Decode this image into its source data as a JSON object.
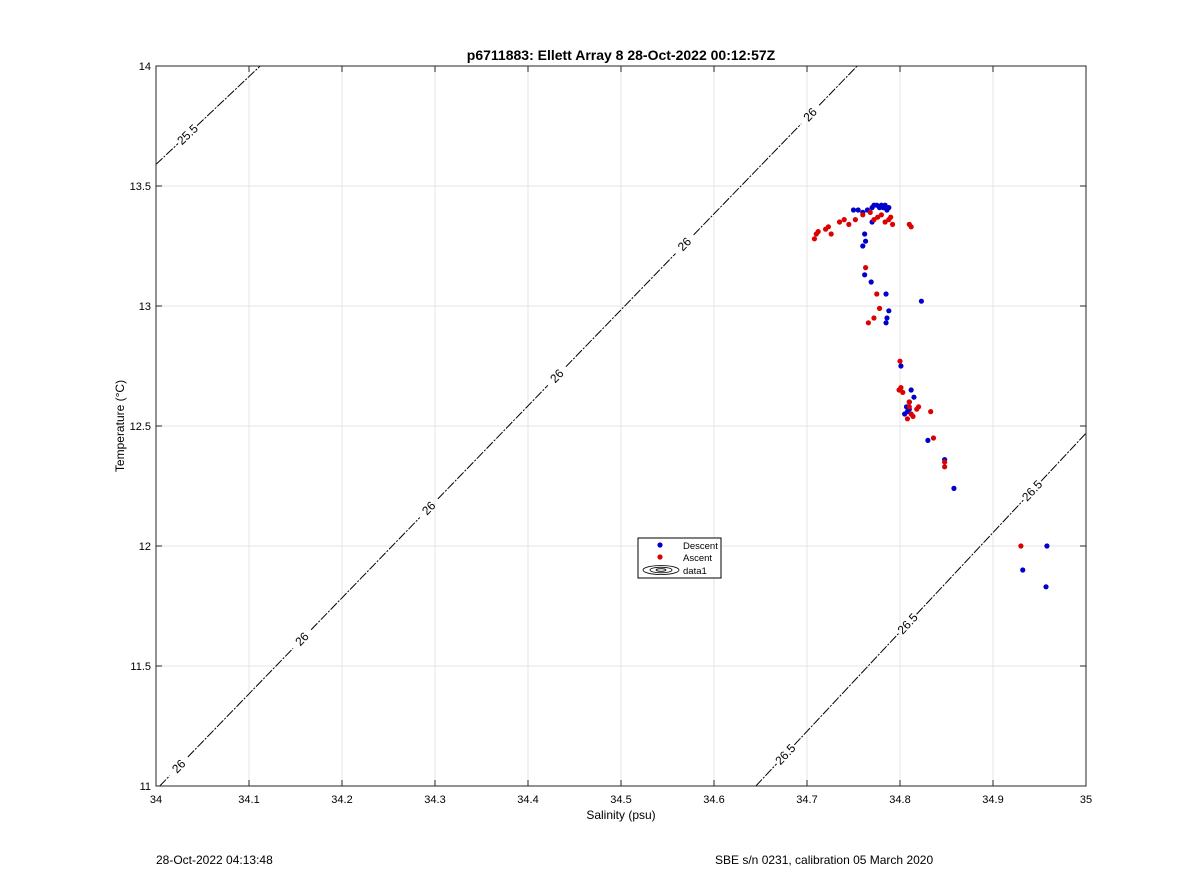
{
  "chart_data": {
    "type": "scatter",
    "title": "p6711883: Ellett Array 8 28-Oct-2022 00:12:57Z",
    "xlabel": "Salinity (psu)",
    "ylabel": "Temperature (°C)",
    "xlim": [
      34,
      35
    ],
    "ylim": [
      11,
      14
    ],
    "xticks": [
      34,
      34.1,
      34.2,
      34.3,
      34.4,
      34.5,
      34.6,
      34.7,
      34.8,
      34.9,
      35
    ],
    "xtick_labels": [
      "34",
      "34.1",
      "34.2",
      "34.3",
      "34.4",
      "34.5",
      "34.6",
      "34.7",
      "34.8",
      "34.9",
      "35"
    ],
    "yticks": [
      11,
      11.5,
      12,
      12.5,
      13,
      13.5,
      14
    ],
    "ytick_labels": [
      "11",
      "11.5",
      "12",
      "12.5",
      "13",
      "13.5",
      "14"
    ],
    "grid": true,
    "legend_placement": "center",
    "legend": [
      "Descent",
      "Ascent",
      "data1"
    ],
    "colors": {
      "descent": "#0000cc",
      "ascent": "#dd0000",
      "contour": "#000000",
      "grid": "#e6e6e6"
    },
    "series": [
      {
        "name": "Descent",
        "x": [
          34.75,
          34.755,
          34.76,
          34.765,
          34.77,
          34.772,
          34.775,
          34.778,
          34.78,
          34.782,
          34.784,
          34.786,
          34.788,
          34.77,
          34.762,
          34.763,
          34.76,
          34.762,
          34.769,
          34.785,
          34.788,
          34.786,
          34.785,
          34.823,
          34.801,
          34.812,
          34.815,
          34.81,
          34.807,
          34.805,
          34.808,
          34.81,
          34.83,
          34.848,
          34.858,
          34.958,
          34.932,
          34.957
        ],
        "y": [
          13.4,
          13.4,
          13.39,
          13.4,
          13.41,
          13.42,
          13.42,
          13.41,
          13.42,
          13.41,
          13.42,
          13.4,
          13.41,
          13.35,
          13.3,
          13.27,
          13.25,
          13.13,
          13.1,
          13.05,
          12.98,
          12.95,
          12.93,
          13.02,
          12.75,
          12.65,
          12.62,
          12.6,
          12.58,
          12.55,
          12.56,
          12.57,
          12.44,
          12.36,
          12.24,
          12.0,
          11.9,
          11.83
        ]
      },
      {
        "name": "Ascent",
        "x": [
          34.708,
          34.71,
          34.712,
          34.72,
          34.723,
          34.726,
          34.735,
          34.74,
          34.745,
          34.752,
          34.76,
          34.768,
          34.772,
          34.776,
          34.78,
          34.784,
          34.788,
          34.79,
          34.792,
          34.812,
          34.81,
          34.763,
          34.775,
          34.778,
          34.772,
          34.766,
          34.8,
          34.801,
          34.799,
          34.803,
          34.81,
          34.812,
          34.814,
          34.808,
          34.81,
          34.818,
          34.82,
          34.833,
          34.836,
          34.848,
          34.848,
          34.93
        ],
        "y": [
          13.28,
          13.3,
          13.31,
          13.32,
          13.33,
          13.3,
          13.35,
          13.36,
          13.34,
          13.36,
          13.38,
          13.39,
          13.36,
          13.37,
          13.38,
          13.35,
          13.36,
          13.37,
          13.34,
          13.33,
          13.34,
          13.16,
          13.05,
          12.99,
          12.95,
          12.93,
          12.77,
          12.66,
          12.65,
          12.64,
          12.58,
          12.55,
          12.54,
          12.53,
          12.6,
          12.57,
          12.58,
          12.56,
          12.45,
          12.33,
          12.35,
          12.0
        ]
      }
    ],
    "contours": [
      {
        "label": "25.5",
        "points": [
          [
            34.0,
            13.59
          ],
          [
            34.112,
            14.0
          ]
        ],
        "label_positions": [
          [
            34.035,
            13.71
          ]
        ]
      },
      {
        "label": "26",
        "points": [
          [
            34.004,
            11.0
          ],
          [
            34.754,
            14.0
          ]
        ],
        "label_positions": [
          [
            34.025,
            11.08
          ],
          [
            34.155,
            11.62
          ],
          [
            34.29,
            12.17
          ],
          [
            34.428,
            12.72
          ],
          [
            34.565,
            13.27
          ],
          [
            34.7,
            13.81
          ]
        ]
      },
      {
        "label": "26.5",
        "points": [
          [
            34.645,
            11.0
          ],
          [
            35.0,
            12.47
          ]
        ],
        "label_positions": [
          [
            34.68,
            11.12
          ],
          [
            34.81,
            11.67
          ],
          [
            34.945,
            12.22
          ]
        ]
      }
    ]
  },
  "footer": {
    "left": "28-Oct-2022 04:13:48",
    "right": "SBE s/n 0231, calibration 05 March 2020"
  }
}
